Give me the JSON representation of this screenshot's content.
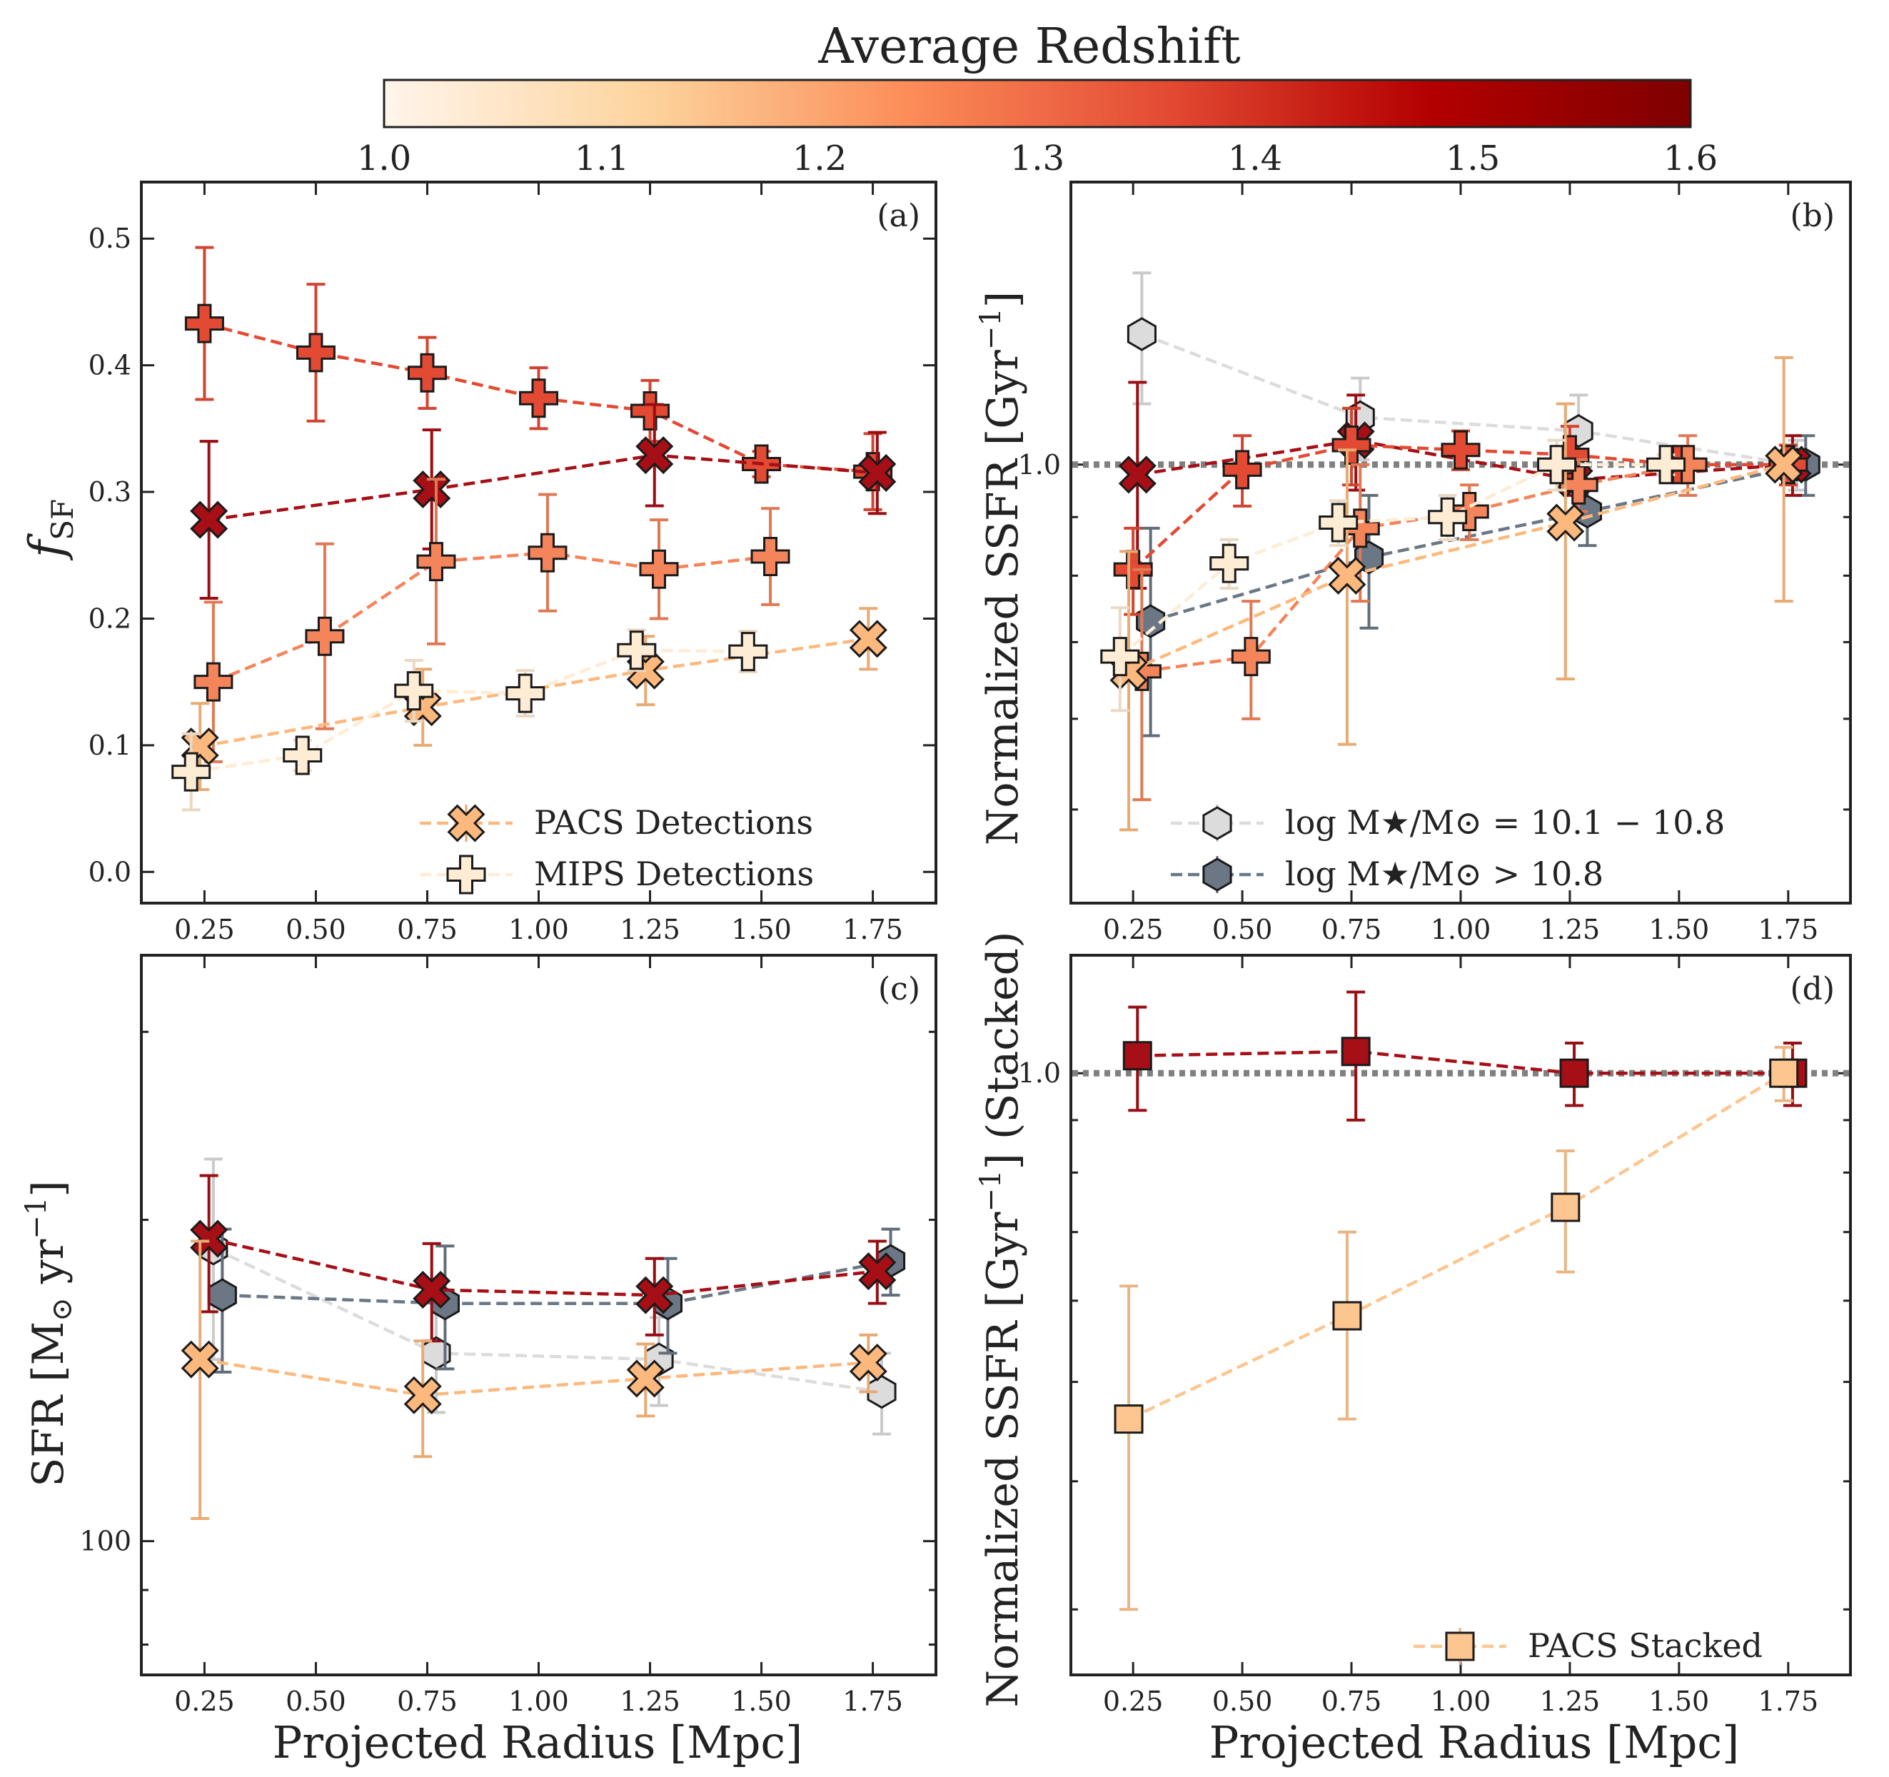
{
  "colorbar": {
    "title": "Average Redshift",
    "min": 1.0,
    "max": 1.6,
    "ticks": [
      "1.0",
      "1.1",
      "1.2",
      "1.3",
      "1.4",
      "1.5",
      "1.6"
    ],
    "stops": [
      "#fff5eb",
      "#fdd49e",
      "#fc8d59",
      "#e34a33",
      "#b30000",
      "#7f0000"
    ]
  },
  "chart_data": [
    {
      "panel": "(a)",
      "type": "scatter",
      "ylabel_main": "f",
      "ylabel_sub": "SF",
      "xlim": [
        0.15,
        1.85
      ],
      "ylim": [
        -0.01,
        0.53
      ],
      "xticks": [
        "0.25",
        "0.50",
        "0.75",
        "1.00",
        "1.25",
        "1.50",
        "1.75"
      ],
      "yticks": [
        "0.0",
        "0.1",
        "0.2",
        "0.3",
        "0.4",
        "0.5"
      ],
      "legend": [
        {
          "label": "PACS Detections",
          "marker": "x",
          "color": "#fdb97d"
        },
        {
          "label": "MIPS Detections",
          "marker": "plus",
          "color": "#feecd4"
        }
      ],
      "series": [
        {
          "marker": "plus",
          "color": "#e34a33",
          "x": [
            0.25,
            0.5,
            0.75,
            1.0,
            1.25,
            1.5,
            1.75
          ],
          "y": [
            0.433,
            0.41,
            0.394,
            0.374,
            0.364,
            0.322,
            0.316
          ],
          "err": [
            0.06,
            0.054,
            0.028,
            0.024,
            0.024,
            0.01,
            0.03
          ]
        },
        {
          "marker": "x",
          "color": "#a50f15",
          "x": [
            0.26,
            0.76,
            1.26,
            1.76
          ],
          "y": [
            0.278,
            0.302,
            0.329,
            0.315
          ],
          "err": [
            0.062,
            0.047,
            0.04,
            0.032
          ]
        },
        {
          "marker": "plus",
          "color": "#f4845a",
          "x": [
            0.27,
            0.52,
            0.77,
            1.02,
            1.27,
            1.52
          ],
          "y": [
            0.15,
            0.186,
            0.245,
            0.252,
            0.239,
            0.249
          ],
          "err": [
            0.063,
            0.073,
            0.065,
            0.046,
            0.039,
            0.038
          ]
        },
        {
          "marker": "x",
          "color": "#fdb97d",
          "x": [
            0.24,
            0.74,
            1.24,
            1.74
          ],
          "y": [
            0.099,
            0.13,
            0.159,
            0.184
          ],
          "err": [
            0.034,
            0.03,
            0.027,
            0.024
          ]
        },
        {
          "marker": "plus",
          "color": "#feecd4",
          "x": [
            0.22,
            0.47,
            0.72,
            0.97,
            1.22,
            1.47
          ],
          "y": [
            0.079,
            0.092,
            0.143,
            0.141,
            0.175,
            0.174
          ],
          "err": [
            0.03,
            0.012,
            0.024,
            0.018,
            0.016,
            0.016
          ]
        }
      ]
    },
    {
      "panel": "(b)",
      "type": "scatter",
      "ylabel": "Normalized SSFR [Gyr$^{-1}$]",
      "log": true,
      "refline": 1.0,
      "xlim": [
        0.15,
        1.85
      ],
      "ylim": [
        0.43,
        1.7
      ],
      "xticks": [
        "0.25",
        "0.50",
        "0.75",
        "1.00",
        "1.25",
        "1.50",
        "1.75"
      ],
      "yticks": [
        {
          "value": 1.0,
          "label": "1.0"
        }
      ],
      "legend": [
        {
          "label": "log M★/M⊙ = 10.1 − 10.8",
          "marker": "hexagon",
          "color": "#dcdcdc"
        },
        {
          "label": "log M★/M⊙ > 10.8",
          "marker": "hexagon",
          "color": "#6b7785"
        }
      ],
      "series": [
        {
          "marker": "hexagon",
          "color": "#dcdcdc",
          "x": [
            0.27,
            0.77,
            1.27,
            1.77
          ],
          "y": [
            1.3,
            1.1,
            1.07,
            1.0
          ],
          "err": [
            0.17,
            0.09,
            0.08,
            0.05
          ]
        },
        {
          "marker": "hexagon",
          "color": "#6b7785",
          "x": [
            0.29,
            0.79,
            1.29,
            1.79
          ],
          "y": [
            0.73,
            0.83,
            0.91,
            1.0
          ],
          "err": [
            0.15,
            0.11,
            0.06,
            0.06
          ]
        },
        {
          "marker": "x",
          "color": "#a50f15",
          "x": [
            0.26,
            0.76,
            1.26,
            1.76
          ],
          "y": [
            0.98,
            1.05,
            0.97,
            1.0
          ],
          "err": [
            0.2,
            0.1,
            0.03,
            0.06
          ]
        },
        {
          "marker": "plus",
          "color": "#e34a33",
          "x": [
            0.25,
            0.5,
            0.75,
            1.0,
            1.25,
            1.5,
            1.75
          ],
          "y": [
            0.81,
            0.99,
            1.04,
            1.03,
            1.02,
            1.0,
            1.0
          ],
          "err": [
            0.07,
            0.07,
            0.08,
            0.04,
            0.06,
            0.03,
            0.04
          ]
        },
        {
          "marker": "plus",
          "color": "#f4845a",
          "x": [
            0.27,
            0.52,
            0.77,
            1.02,
            1.27,
            1.52
          ],
          "y": [
            0.66,
            0.68,
            0.88,
            0.91,
            0.96,
            1.0
          ],
          "err": [
            0.15,
            0.08,
            0.12,
            0.05,
            0.05,
            0.06
          ]
        },
        {
          "marker": "x",
          "color": "#fdb97d",
          "x": [
            0.24,
            0.74,
            1.24,
            1.74
          ],
          "y": [
            0.66,
            0.8,
            0.89,
            1.0
          ],
          "err": [
            0.18,
            0.23,
            0.24,
            0.24
          ]
        },
        {
          "marker": "plus",
          "color": "#feecd4",
          "x": [
            0.22,
            0.47,
            0.72,
            0.97,
            1.22,
            1.47
          ],
          "y": [
            0.68,
            0.82,
            0.89,
            0.9,
            1.0,
            1.0
          ],
          "err": [
            0.07,
            0.04,
            0.04,
            0.04,
            0.05,
            0.02
          ]
        }
      ]
    },
    {
      "panel": "(c)",
      "type": "scatter",
      "ylabel": "SFR [M$_\\odot$ yr$^{-1}$]",
      "log": true,
      "xlim": [
        0.15,
        1.85
      ],
      "ylim": [
        78,
        340
      ],
      "xticks": [
        "0.25",
        "0.50",
        "0.75",
        "1.00",
        "1.25",
        "1.50",
        "1.75"
      ],
      "yticks": [
        {
          "value": 100,
          "label": "100"
        }
      ],
      "series": [
        {
          "marker": "hexagon",
          "color": "#dcdcdc",
          "x": [
            0.27,
            0.77,
            1.27,
            1.77
          ],
          "y": [
            188,
            150,
            148,
            138
          ],
          "err": [
            40,
            18,
            14,
            12
          ]
        },
        {
          "marker": "hexagon",
          "color": "#6b7785",
          "x": [
            0.29,
            0.79,
            1.29,
            1.79
          ],
          "y": [
            170,
            167,
            167,
            183
          ],
          "err": [
            26,
            22,
            17,
            13
          ]
        },
        {
          "marker": "x",
          "color": "#a50f15",
          "x": [
            0.26,
            0.76,
            1.26,
            1.76
          ],
          "y": [
            192,
            172,
            170,
            179
          ],
          "err": [
            28,
            18,
            14,
            12
          ]
        },
        {
          "marker": "x",
          "color": "#fdb97d",
          "x": [
            0.24,
            0.74,
            1.24,
            1.74
          ],
          "y": [
            148,
            137,
            142,
            147
          ],
          "err": [
            43,
            17,
            11,
            9
          ]
        }
      ]
    },
    {
      "panel": "(d)",
      "type": "scatter",
      "ylabel": "Normalized SSFR [Gyr$^{-1}$] (Stacked)",
      "log": true,
      "refline": 1.0,
      "xlim": [
        0.15,
        1.85
      ],
      "ylim": [
        0.27,
        1.25
      ],
      "xticks": [
        "0.25",
        "0.50",
        "0.75",
        "1.00",
        "1.25",
        "1.50",
        "1.75"
      ],
      "yticks": [
        {
          "value": 1.0,
          "label": "1.0"
        }
      ],
      "legend": [
        {
          "label": "PACS Stacked",
          "marker": "square",
          "color": "#fdc58f"
        }
      ],
      "series": [
        {
          "marker": "square",
          "color": "#a50f15",
          "x": [
            0.26,
            0.76,
            1.26,
            1.76
          ],
          "y": [
            1.04,
            1.05,
            1.0,
            1.0
          ],
          "err": [
            0.12,
            0.15,
            0.07,
            0.07
          ]
        },
        {
          "marker": "square",
          "color": "#fdc58f",
          "x": [
            0.24,
            0.74,
            1.24,
            1.74
          ],
          "y": [
            0.46,
            0.58,
            0.74,
            1.0
          ],
          "err": [
            0.16,
            0.12,
            0.1,
            0.06
          ]
        }
      ]
    }
  ],
  "axes_common": {
    "xlabel": "Projected Radius [Mpc]",
    "panel_labels": [
      "(a)",
      "(b)",
      "(c)",
      "(d)"
    ]
  }
}
